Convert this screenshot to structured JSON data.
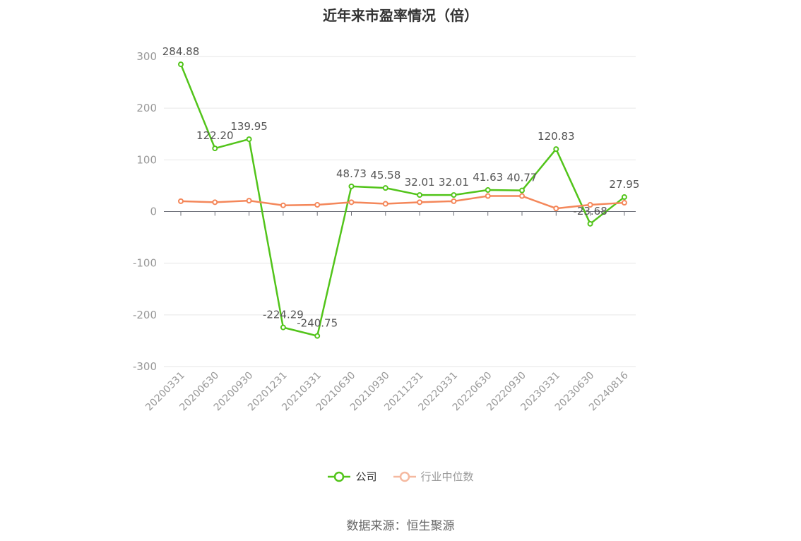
{
  "chart_data": {
    "type": "line",
    "title": "近年来市盈率情况（倍）",
    "categories": [
      "20200331",
      "20200630",
      "20200930",
      "20201231",
      "20210331",
      "20210630",
      "20210930",
      "20211231",
      "20220331",
      "20220630",
      "20220930",
      "20230331",
      "20230630",
      "20240816"
    ],
    "ylim": [
      -300,
      300
    ],
    "yticks": [
      300,
      200,
      100,
      0,
      -100,
      -200,
      -300
    ],
    "grid": true,
    "legend_position": "bottom",
    "series": [
      {
        "name": "公司",
        "color": "#52c41a",
        "values": [
          284.88,
          122.2,
          139.95,
          -224.29,
          -240.75,
          48.73,
          45.58,
          32.01,
          32.01,
          41.63,
          40.77,
          120.83,
          -23.68,
          27.95
        ],
        "labels": [
          "284.88",
          "122.20",
          "139.95",
          "-224.29",
          "-240.75",
          "48.73",
          "45.58",
          "32.01",
          "32.01",
          "41.63",
          "40.77",
          "120.83",
          "-23.68",
          "27.95"
        ]
      },
      {
        "name": "行业中位数",
        "color": "#f4875a",
        "legend_color": "#f5b9a0",
        "values": [
          20,
          18,
          21,
          12,
          13,
          18,
          15,
          18,
          20,
          30,
          30,
          6,
          13,
          17
        ]
      }
    ]
  },
  "source": "数据来源：恒生聚源"
}
